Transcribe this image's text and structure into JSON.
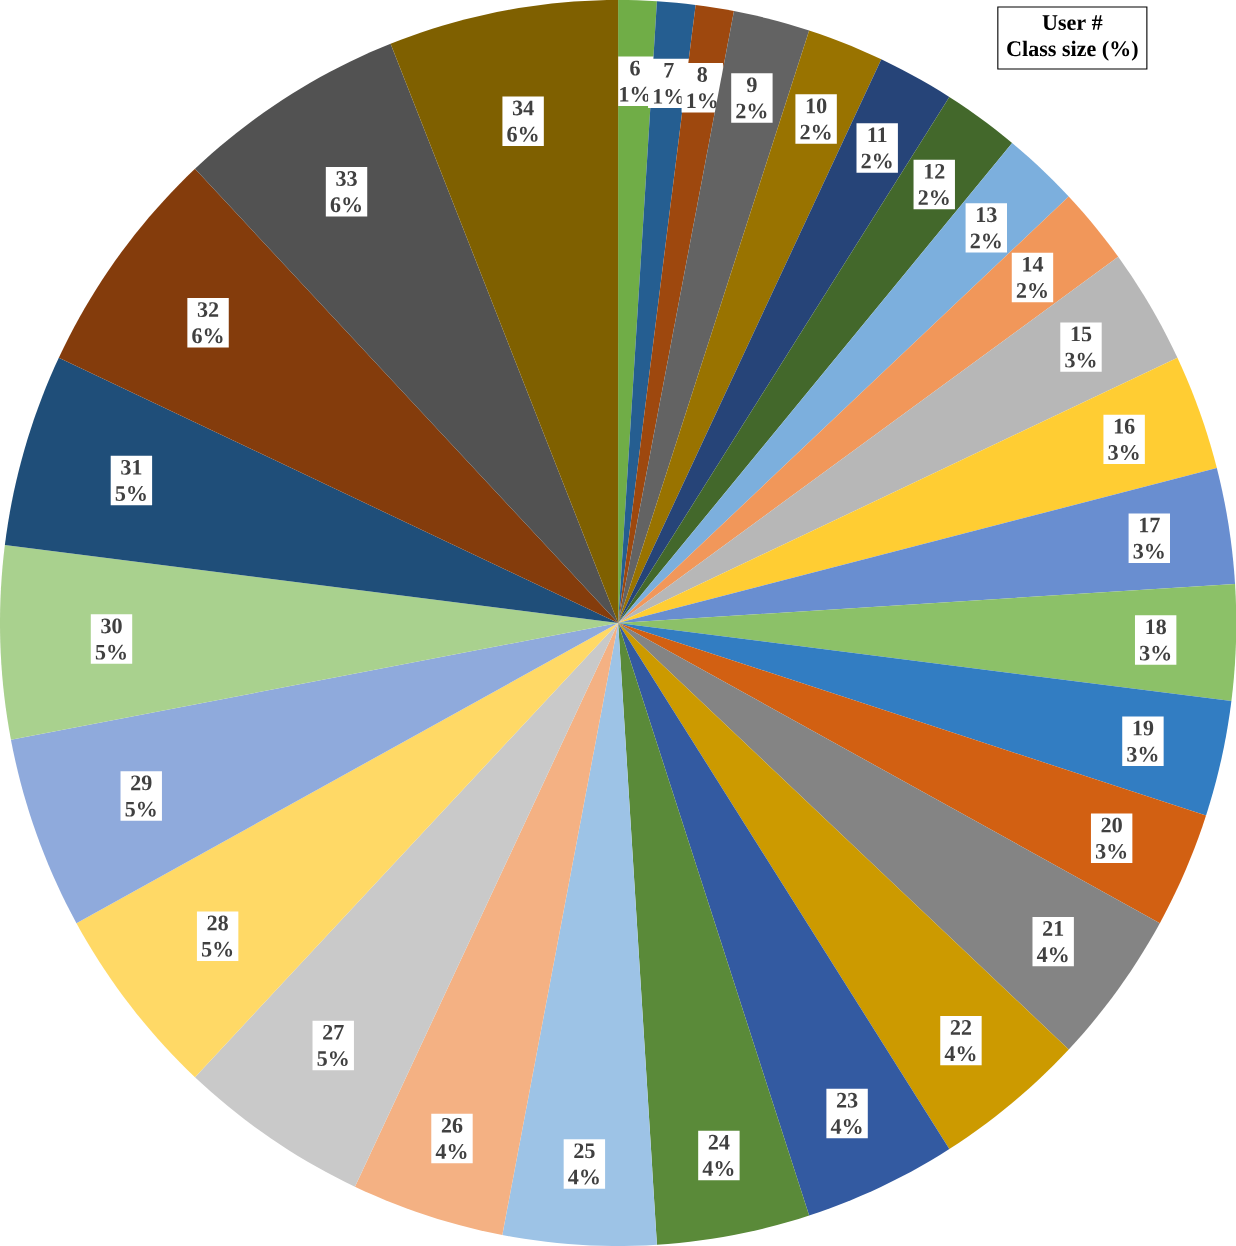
{
  "chart_data": {
    "type": "pie",
    "categories": [
      "6",
      "7",
      "8",
      "9",
      "10",
      "11",
      "12",
      "13",
      "14",
      "15",
      "16",
      "17",
      "18",
      "19",
      "20",
      "21",
      "22",
      "23",
      "24",
      "25",
      "26",
      "27",
      "28",
      "29",
      "30",
      "31",
      "32",
      "33",
      "34"
    ],
    "values": [
      1,
      1,
      1,
      2,
      2,
      2,
      2,
      2,
      2,
      3,
      3,
      3,
      3,
      3,
      3,
      4,
      4,
      4,
      4,
      4,
      4,
      5,
      5,
      5,
      5,
      5,
      6,
      6,
      6
    ],
    "value_labels": [
      "1%",
      "1%",
      "1%",
      "2%",
      "2%",
      "2%",
      "2%",
      "2%",
      "2%",
      "3%",
      "3%",
      "3%",
      "3%",
      "3%",
      "3%",
      "4%",
      "4%",
      "4%",
      "4%",
      "4%",
      "4%",
      "5%",
      "5%",
      "5%",
      "5%",
      "5%",
      "6%",
      "6%",
      "6%"
    ],
    "colors": [
      "#70ad47",
      "#255e91",
      "#9e480e",
      "#636363",
      "#997300",
      "#264478",
      "#43682b",
      "#7cafdd",
      "#f1975a",
      "#b7b7b7",
      "#ffcd33",
      "#698ed0",
      "#8cc168",
      "#327dc2",
      "#d26012",
      "#848484",
      "#cc9a00",
      "#335aa1",
      "#5a8a39",
      "#9dc3e6",
      "#f4b183",
      "#c9c9c9",
      "#ffd966",
      "#8faadc",
      "#a9d18e",
      "#1f4e79",
      "#843c0c",
      "#525252",
      "#7f6000"
    ],
    "annotations": [
      "User #",
      "Class size (%)"
    ]
  }
}
